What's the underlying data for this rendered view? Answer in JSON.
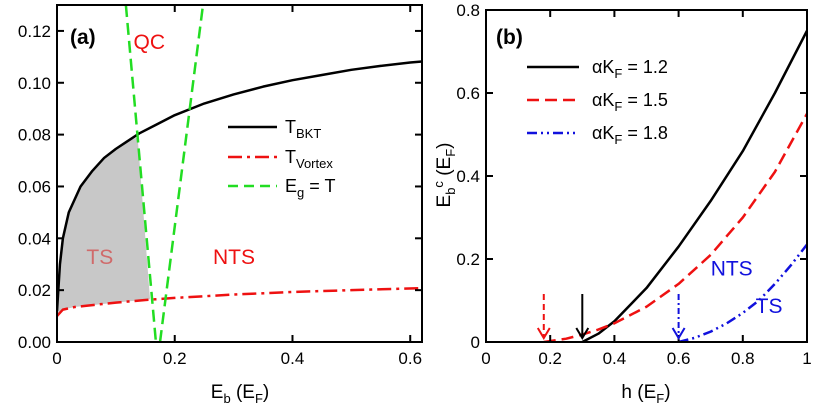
{
  "chart_data": [
    {
      "type": "line",
      "panel_label": "(a)",
      "xlabel_main": "E",
      "xlabel_sub": "b",
      "xlabel_unit_open": " (E",
      "xlabel_unit_sub": "F",
      "xlabel_unit_close": ")",
      "xlim": [
        0,
        0.62
      ],
      "ylim": [
        0,
        0.13
      ],
      "xticks": [
        0,
        0.2,
        0.4,
        0.6
      ],
      "xtick_labels": [
        "0",
        "0.2",
        "0.4",
        "0.6"
      ],
      "yticks": [
        0,
        0.02,
        0.04,
        0.06,
        0.08,
        0.1,
        0.12
      ],
      "ytick_labels": [
        "0.00",
        "0.02",
        "0.04",
        "0.06",
        "0.08",
        "0.10",
        "0.12"
      ],
      "series": [
        {
          "name": "T_BKT",
          "legend_main": "T",
          "legend_sub": "BKT",
          "color": "#000000",
          "style": "solid",
          "x": [
            0,
            0.005,
            0.01,
            0.02,
            0.04,
            0.06,
            0.08,
            0.1,
            0.12,
            0.14,
            0.17,
            0.2,
            0.25,
            0.3,
            0.35,
            0.4,
            0.45,
            0.5,
            0.55,
            0.6,
            0.62
          ],
          "y": [
            0.012,
            0.03,
            0.04,
            0.05,
            0.06,
            0.066,
            0.071,
            0.0745,
            0.0775,
            0.0805,
            0.084,
            0.0875,
            0.092,
            0.0955,
            0.0985,
            0.101,
            0.103,
            0.105,
            0.1065,
            0.1078,
            0.1082
          ]
        },
        {
          "name": "T_Vortex",
          "legend_main": "T",
          "legend_sub": "Vortex",
          "color": "#ee1111",
          "style": "dashdot",
          "x": [
            0,
            0.01,
            0.03,
            0.05,
            0.1,
            0.15,
            0.2,
            0.3,
            0.4,
            0.5,
            0.62
          ],
          "y": [
            0.01,
            0.0125,
            0.0135,
            0.014,
            0.0152,
            0.0162,
            0.017,
            0.0183,
            0.0193,
            0.02,
            0.0208
          ]
        },
        {
          "name": "E_g = T",
          "legend_main": "E",
          "legend_sub": "g",
          "legend_suffix": " = T",
          "color": "#22dd22",
          "style": "dashed",
          "branches": [
            {
              "x": [
                0.117,
                0.168
              ],
              "y": [
                0.13,
                0
              ]
            },
            {
              "x": [
                0.175,
                0.248
              ],
              "y": [
                0,
                0.13
              ]
            }
          ]
        }
      ],
      "shaded_region": {
        "label": "TS",
        "color": "#c8c8c8",
        "upper_x": [
          0,
          0.005,
          0.01,
          0.02,
          0.04,
          0.06,
          0.08,
          0.1,
          0.12,
          0.137
        ],
        "upper_y": [
          0.012,
          0.03,
          0.04,
          0.05,
          0.06,
          0.066,
          0.071,
          0.0745,
          0.0775,
          0.079
        ],
        "right_x": [
          0.137,
          0.158
        ],
        "right_y": [
          0.079,
          0.0165
        ],
        "lower_x": [
          0.158,
          0.1,
          0.05,
          0.03,
          0.01,
          0
        ],
        "lower_y": [
          0.0165,
          0.0152,
          0.014,
          0.0135,
          0.0125,
          0.01
        ]
      },
      "annotations": [
        {
          "text": "QC",
          "x": 0.13,
          "y": 0.113,
          "color": "red"
        },
        {
          "text": "TS",
          "x": 0.05,
          "y": 0.03,
          "color": "pink"
        },
        {
          "text": "NTS",
          "x": 0.265,
          "y": 0.03,
          "color": "red"
        }
      ]
    },
    {
      "type": "line",
      "panel_label": "(b)",
      "xlabel_main": "h (E",
      "xlabel_sub": "F",
      "xlabel_close": ")",
      "ylabel_main": "E",
      "ylabel_sub": "b",
      "ylabel_sup": "c",
      "ylabel_unit_open": " (E",
      "ylabel_unit_sub": "F",
      "ylabel_unit_close": ")",
      "xlim": [
        0,
        1
      ],
      "ylim": [
        0,
        0.8
      ],
      "xticks": [
        0,
        0.2,
        0.4,
        0.6,
        0.8,
        1
      ],
      "xtick_labels": [
        "0",
        "0.2",
        "0.4",
        "0.6",
        "0.8",
        "1"
      ],
      "yticks": [
        0,
        0.2,
        0.4,
        0.6,
        0.8
      ],
      "ytick_labels": [
        "0",
        "0.2",
        "0.4",
        "0.6",
        "0.8"
      ],
      "series": [
        {
          "name": "αK_F = 1.2",
          "legend_main": "αK",
          "legend_sub": "F",
          "legend_suffix": " = 1.2",
          "color": "#000000",
          "style": "solid",
          "x": [
            0.3,
            0.35,
            0.4,
            0.5,
            0.6,
            0.7,
            0.8,
            0.9,
            1.0
          ],
          "y": [
            0,
            0.02,
            0.05,
            0.13,
            0.23,
            0.34,
            0.46,
            0.6,
            0.75
          ]
        },
        {
          "name": "αK_F = 1.5",
          "legend_main": "αK",
          "legend_sub": "F",
          "legend_suffix": " = 1.5",
          "color": "#ee1111",
          "style": "dashed",
          "x": [
            0.18,
            0.25,
            0.3,
            0.35,
            0.4,
            0.5,
            0.6,
            0.7,
            0.8,
            0.9,
            1.0
          ],
          "y": [
            0,
            0.008,
            0.018,
            0.03,
            0.045,
            0.085,
            0.14,
            0.21,
            0.3,
            0.41,
            0.55
          ]
        },
        {
          "name": "αK_F = 1.8",
          "legend_main": "αK",
          "legend_sub": "F",
          "legend_suffix": " = 1.8",
          "color": "#1111dd",
          "style": "dashdotdot",
          "x": [
            0.6,
            0.65,
            0.7,
            0.75,
            0.8,
            0.85,
            0.9,
            0.95,
            1.0
          ],
          "y": [
            0,
            0.01,
            0.025,
            0.045,
            0.07,
            0.1,
            0.14,
            0.185,
            0.235
          ]
        }
      ],
      "arrows": [
        {
          "x": 0.18,
          "color": "#ee1111",
          "style": "dashed"
        },
        {
          "x": 0.3,
          "color": "#000000",
          "style": "solid"
        },
        {
          "x": 0.6,
          "color": "#1111dd",
          "style": "dashdotdot"
        }
      ],
      "annotations": [
        {
          "text": "NTS",
          "x": 0.7,
          "y": 0.16,
          "color": "blue"
        },
        {
          "text": "TS",
          "x": 0.84,
          "y": 0.07,
          "color": "blue"
        }
      ]
    }
  ]
}
